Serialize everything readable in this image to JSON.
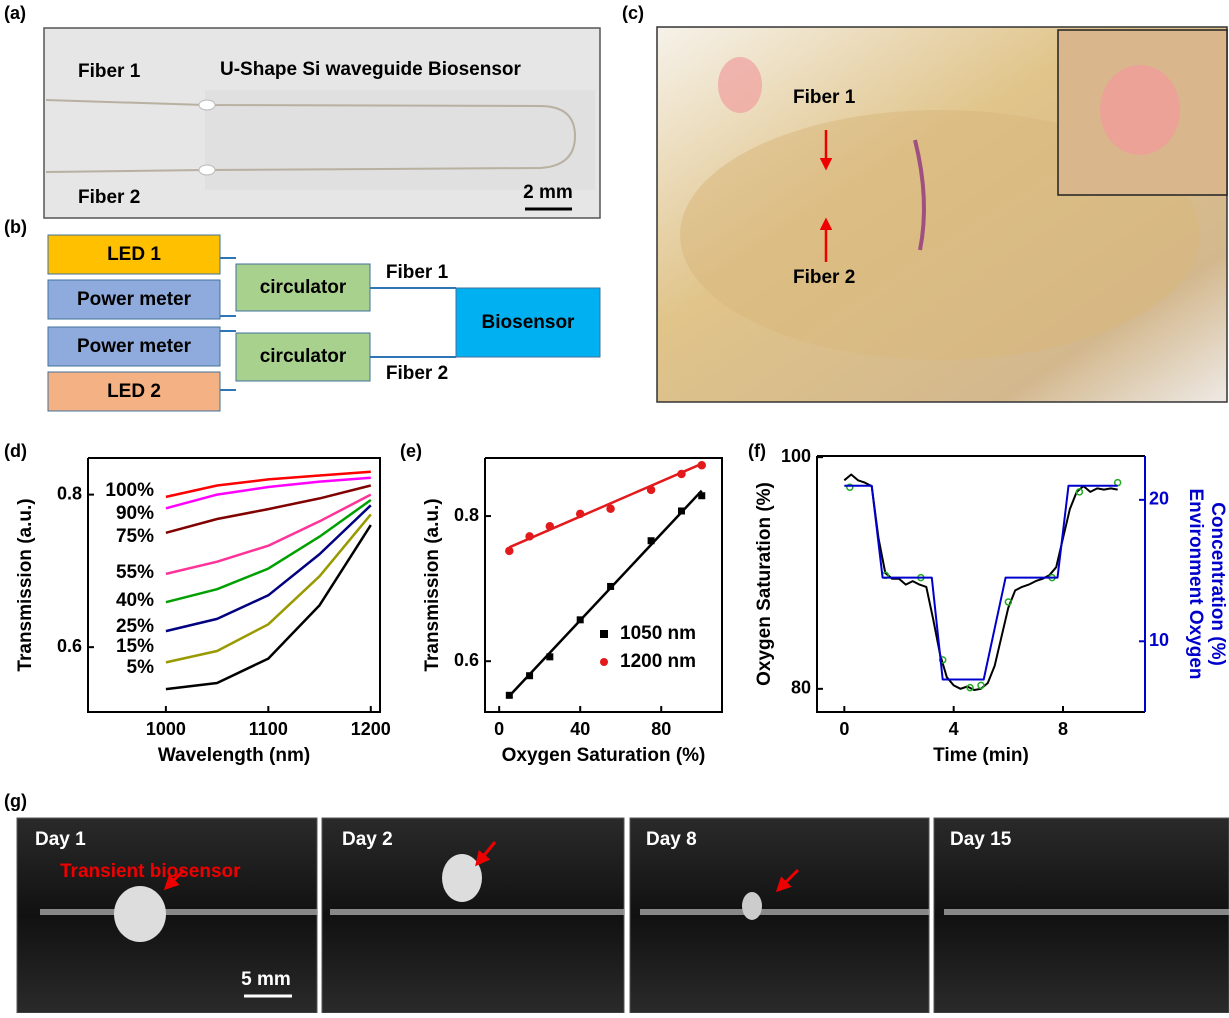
{
  "panel_labels": [
    "(a)",
    "(b)",
    "(c)",
    "(d)",
    "(e)",
    "(f)",
    "(g)"
  ],
  "a": {
    "title": "U-Shape Si waveguide Biosensor",
    "fiber1": "Fiber 1",
    "fiber2": "Fiber 2",
    "scale": "2 mm"
  },
  "b": {
    "nodes": [
      "LED 1",
      "Power meter",
      "Power meter",
      "LED 2",
      "circulator",
      "circulator",
      "Biosensor"
    ],
    "edges": [
      "Fiber 1",
      "Fiber 2"
    ]
  },
  "c": {
    "fiber1": "Fiber 1",
    "fiber2": "Fiber 2"
  },
  "g": {
    "days": [
      "Day 1",
      "Day 2",
      "Day 8",
      "Day 15"
    ],
    "annotation": "Transient biosensor",
    "scale": "5 mm"
  },
  "chart_data": [
    {
      "type": "line",
      "xlabel": "Wavelength (nm)",
      "ylabel": "Transmission (a.u.)",
      "x": [
        1000,
        1050,
        1100,
        1150,
        1200
      ],
      "xlim": [
        924,
        1209
      ],
      "xticks": [
        1000,
        1100,
        1200
      ],
      "ylim": [
        0.515,
        0.848
      ],
      "yticks": [
        0.6,
        0.8
      ],
      "series": [
        {
          "name": "100%",
          "color": "#ff0000",
          "values": [
            0.797,
            0.812,
            0.82,
            0.825,
            0.83
          ]
        },
        {
          "name": "90%",
          "color": "#ff00ff",
          "values": [
            0.782,
            0.8,
            0.81,
            0.817,
            0.822
          ]
        },
        {
          "name": "75%",
          "color": "#800000",
          "values": [
            0.75,
            0.768,
            0.781,
            0.795,
            0.812
          ]
        },
        {
          "name": "55%",
          "color": "#ff3399",
          "values": [
            0.696,
            0.712,
            0.733,
            0.765,
            0.8
          ]
        },
        {
          "name": "40%",
          "color": "#00a000",
          "values": [
            0.659,
            0.676,
            0.703,
            0.745,
            0.793
          ]
        },
        {
          "name": "25%",
          "color": "#000080",
          "values": [
            0.621,
            0.637,
            0.668,
            0.722,
            0.786
          ]
        },
        {
          "name": "15%",
          "color": "#999900",
          "values": [
            0.58,
            0.595,
            0.63,
            0.693,
            0.774
          ]
        },
        {
          "name": "5%",
          "color": "#000000",
          "values": [
            0.545,
            0.553,
            0.585,
            0.655,
            0.76
          ]
        }
      ]
    },
    {
      "type": "scatter",
      "xlabel": "Oxygen Saturation (%)",
      "ylabel": "Transmission (a.u.)",
      "x": [
        5,
        15,
        25,
        40,
        55,
        75,
        90,
        100
      ],
      "xlim": [
        -7,
        110
      ],
      "xticks": [
        0,
        40,
        80
      ],
      "ylim": [
        0.53,
        0.88
      ],
      "yticks": [
        0.6,
        0.8
      ],
      "legend": "lower right",
      "series": [
        {
          "name": "1050 nm",
          "color": "#000000",
          "marker": "square",
          "values": [
            0.553,
            0.58,
            0.606,
            0.657,
            0.703,
            0.766,
            0.807,
            0.828
          ],
          "fit_x": [
            5,
            100
          ],
          "fit_values": [
            0.552,
            0.835
          ]
        },
        {
          "name": "1200 nm",
          "color": "#e31a1c",
          "marker": "circle",
          "values": [
            0.752,
            0.772,
            0.786,
            0.803,
            0.81,
            0.836,
            0.858,
            0.87
          ],
          "fit_x": [
            5,
            100
          ],
          "fit_values": [
            0.757,
            0.872
          ]
        }
      ]
    },
    {
      "type": "line",
      "xlabel": "Time (min)",
      "ylabel": "Oxygen Saturation (%)",
      "y2label": [
        "Environment Oxygen",
        "Concentration (%)"
      ],
      "xlim": [
        -1,
        11
      ],
      "xticks": [
        0,
        4,
        8
      ],
      "ylim": [
        78,
        100.1
      ],
      "yticks": [
        80,
        100
      ],
      "y2lim": [
        5,
        23.1
      ],
      "y2ticks": [
        10,
        20
      ],
      "y2color": "#0000cc",
      "series": [
        {
          "color": "#000000",
          "kind": "line",
          "x": [
            0,
            0.25,
            0.5,
            0.75,
            1,
            1.25,
            1.5,
            1.75,
            2,
            2.25,
            2.5,
            2.75,
            3,
            3.25,
            3.5,
            3.75,
            4,
            4.25,
            4.5,
            4.75,
            5,
            5.25,
            5.5,
            5.75,
            6,
            6.25,
            6.5,
            6.75,
            7,
            7.25,
            7.5,
            7.75,
            8,
            8.25,
            8.5,
            8.75,
            9,
            9.25,
            9.5,
            9.75,
            10
          ],
          "values": [
            98,
            98.5,
            98,
            97.8,
            97.5,
            93,
            90,
            89.5,
            89.5,
            89,
            89.3,
            89,
            88.8,
            86,
            83,
            81,
            80.3,
            80,
            80.2,
            79.9,
            80,
            80.5,
            82,
            84.5,
            87,
            88.5,
            88.8,
            89,
            89.3,
            89.5,
            89.8,
            90.5,
            93,
            95.5,
            97,
            97.5,
            97,
            97.3,
            97.2,
            97.3,
            97.2
          ]
        },
        {
          "color": "#22aa22",
          "kind": "scatter",
          "x": [
            0.2,
            1.5,
            2.8,
            3.6,
            4.6,
            5.0,
            6.0,
            7.6,
            8.6,
            10
          ],
          "values": [
            97.4,
            89.8,
            89.6,
            82.5,
            80.1,
            80.3,
            87.5,
            89.6,
            97,
            97.8
          ]
        },
        {
          "color": "#0000cc",
          "kind": "line",
          "axis": "y2",
          "x": [
            0,
            1.0,
            1.4,
            3.2,
            3.6,
            5.1,
            5.9,
            7.8,
            8.2,
            10
          ],
          "values": [
            21,
            21,
            14.5,
            14.5,
            7.3,
            7.3,
            14.5,
            14.5,
            21,
            21
          ]
        }
      ]
    }
  ]
}
